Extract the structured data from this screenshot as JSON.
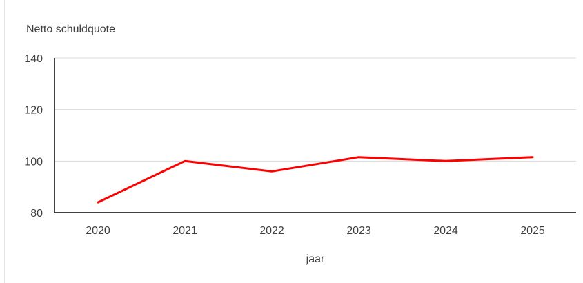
{
  "chart_data": {
    "type": "line",
    "title": "",
    "ylabel": "Netto schuldquote",
    "xlabel": "jaar",
    "categories": [
      "2020",
      "2021",
      "2022",
      "2023",
      "2024",
      "2025"
    ],
    "series": [
      {
        "name": "",
        "values": [
          84,
          100,
          96,
          101.5,
          100,
          101.5
        ],
        "color": "#ff0000"
      }
    ],
    "ylim": [
      80,
      140
    ],
    "yticks": [
      80,
      100,
      120,
      140
    ],
    "grid": true,
    "legend": "none"
  }
}
